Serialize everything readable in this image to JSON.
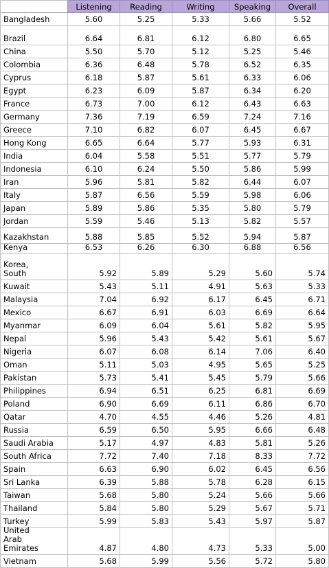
{
  "columns": [
    "Listening",
    "Reading",
    "Writing",
    "Speaking",
    "Overall"
  ],
  "rows": [
    {
      "country": "Bangladesh",
      "values": [
        "5.60",
        "5.25",
        "5.33",
        "5.66",
        "5.52"
      ]
    },
    {
      "country": "Brazil",
      "values": [
        "6.64",
        "6.81",
        "6.12",
        "6.80",
        "6.65"
      ]
    },
    {
      "country": "China",
      "values": [
        "5.50",
        "5.70",
        "5.12",
        "5.25",
        "5.46"
      ]
    },
    {
      "country": "Colombia",
      "values": [
        "6.36",
        "6.48",
        "5.78",
        "6.52",
        "6.35"
      ]
    },
    {
      "country": "Cyprus",
      "values": [
        "6.18",
        "5.87",
        "5.61",
        "6.33",
        "6.06"
      ]
    },
    {
      "country": "Egypt",
      "values": [
        "6.23",
        "6.09",
        "5.87",
        "6.34",
        "6.20"
      ]
    },
    {
      "country": "France",
      "values": [
        "6.73",
        "7.00",
        "6.12",
        "6.43",
        "6.63"
      ]
    },
    {
      "country": "Germany",
      "values": [
        "7.36",
        "7.19",
        "6.59",
        "7.24",
        "7.16"
      ]
    },
    {
      "country": "Greece",
      "values": [
        "7.10",
        "6.82",
        "6.07",
        "6.45",
        "6.67"
      ]
    },
    {
      "country": "Hong Kong",
      "values": [
        "6.65",
        "6.64",
        "5.77",
        "5.93",
        "6.31"
      ]
    },
    {
      "country": "India",
      "values": [
        "6.04",
        "5.58",
        "5.51",
        "5.77",
        "5.79"
      ]
    },
    {
      "country": "Indonesia",
      "values": [
        "6.10",
        "6.24",
        "5.50",
        "5.86",
        "5.99"
      ]
    },
    {
      "country": "Iran",
      "values": [
        "5.96",
        "5.81",
        "5.82",
        "6.44",
        "6.07"
      ]
    },
    {
      "country": "Italy",
      "values": [
        "5.87",
        "6.56",
        "5.59",
        "5.98",
        "6.06"
      ]
    },
    {
      "country": "Japan",
      "values": [
        "5.89",
        "5.86",
        "5.35",
        "5.80",
        "5.79"
      ]
    },
    {
      "country": "Jordan",
      "values": [
        "5.59",
        "5.46",
        "5.13",
        "5.82",
        "5.57"
      ]
    },
    {
      "country": "Kazakhstan",
      "values": [
        "5.88",
        "5.85",
        "5.52",
        "5.94",
        "5.87"
      ]
    },
    {
      "country": "Kenya",
      "values": [
        "6.53",
        "6.26",
        "6.30",
        "6.88",
        "6.56"
      ]
    },
    {
      "country": "Korea, South",
      "values": [
        "5.92",
        "5.89",
        "5.29",
        "5.60",
        "5.74"
      ]
    },
    {
      "country": "Kuwait",
      "values": [
        "5.43",
        "5.11",
        "4.91",
        "5.63",
        "5.33"
      ]
    },
    {
      "country": "Malaysia",
      "values": [
        "7.04",
        "6.92",
        "6.17",
        "6.45",
        "6.71"
      ]
    },
    {
      "country": "Mexico",
      "values": [
        "6.67",
        "6.91",
        "6.03",
        "6.69",
        "6.64"
      ]
    },
    {
      "country": "Myanmar",
      "values": [
        "6.09",
        "6.04",
        "5.61",
        "5.82",
        "5.95"
      ]
    },
    {
      "country": "Nepal",
      "values": [
        "5.96",
        "5.43",
        "5.42",
        "5.61",
        "5.67"
      ]
    },
    {
      "country": "Nigeria",
      "values": [
        "6.07",
        "6.08",
        "6.14",
        "7.06",
        "6.40"
      ]
    },
    {
      "country": "Oman",
      "values": [
        "5.11",
        "5.03",
        "4.95",
        "5.65",
        "5.25"
      ]
    },
    {
      "country": "Pakistan",
      "values": [
        "5.73",
        "5.41",
        "5.45",
        "5.79",
        "5.66"
      ]
    },
    {
      "country": "Philippines",
      "values": [
        "6.94",
        "6.51",
        "6.25",
        "6.81",
        "6.69"
      ]
    },
    {
      "country": "Poland",
      "values": [
        "6.90",
        "6.69",
        "6.11",
        "6.86",
        "6.70"
      ]
    },
    {
      "country": "Qatar",
      "values": [
        "4.70",
        "4.55",
        "4.46",
        "5.26",
        "4.81"
      ]
    },
    {
      "country": "Russia",
      "values": [
        "6.59",
        "6.50",
        "5.95",
        "6.66",
        "6.48"
      ]
    },
    {
      "country": "Saudi Arabia",
      "values": [
        "5.17",
        "4.97",
        "4.83",
        "5.81",
        "5.26"
      ]
    },
    {
      "country": "South Africa",
      "values": [
        "7.72",
        "7.40",
        "7.18",
        "8.33",
        "7.72"
      ]
    },
    {
      "country": "Spain",
      "values": [
        "6.63",
        "6.90",
        "6.02",
        "6.45",
        "6.56"
      ]
    },
    {
      "country": "Sri Lanka",
      "values": [
        "6.39",
        "5.88",
        "5.78",
        "6.28",
        "6.15"
      ]
    },
    {
      "country": "Taiwan",
      "values": [
        "5.68",
        "5.80",
        "5.24",
        "5.66",
        "5.66"
      ]
    },
    {
      "country": "Thailand",
      "values": [
        "5.84",
        "5.80",
        "5.29",
        "5.67",
        "5.71"
      ]
    },
    {
      "country": "Turkey",
      "values": [
        "5.99",
        "5.83",
        "5.43",
        "5.97",
        "5.87"
      ]
    },
    {
      "country": "United Arab Emirates",
      "values": [
        "4.87",
        "4.80",
        "4.73",
        "5.33",
        "5.00"
      ]
    },
    {
      "country": "Vietnam",
      "values": [
        "5.68",
        "5.99",
        "5.56",
        "5.72",
        "5.80"
      ]
    }
  ]
}
